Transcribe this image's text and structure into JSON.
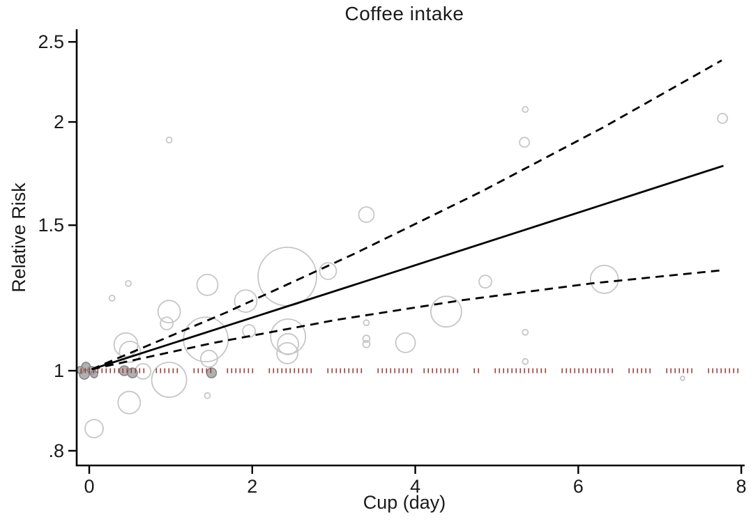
{
  "chart_data": {
    "type": "scatter",
    "subtype": "dose-response-meta-analysis-bubble-plot",
    "title": "Coffee intake",
    "xlabel": "Cup (day)",
    "ylabel": "Relative Risk",
    "x_ticks": [
      {
        "v": 0,
        "label": "0"
      },
      {
        "v": 2,
        "label": "2"
      },
      {
        "v": 4,
        "label": "4"
      },
      {
        "v": 6,
        "label": "6"
      },
      {
        "v": 8,
        "label": "8"
      }
    ],
    "y_ticks": [
      {
        "v": 2.5,
        "label": "2.5"
      },
      {
        "v": 2,
        "label": "2"
      },
      {
        "v": 1.5,
        "label": "1.5"
      },
      {
        "v": 1,
        "label": "1"
      },
      {
        "v": 0.8,
        "label": ".8"
      }
    ],
    "y_scale": "log",
    "xlim": [
      -0.15,
      8.05
    ],
    "ylim": [
      0.78,
      2.55
    ],
    "grid": false,
    "legend": "none",
    "curves": [
      {
        "name": "fitted-relative-risk",
        "style": "solid",
        "points": [
          [
            0.03,
            1.004
          ],
          [
            3.9,
            1.332
          ],
          [
            7.78,
            1.77
          ]
        ]
      },
      {
        "name": "upper-95ci",
        "style": "dashed",
        "points": [
          [
            0.03,
            1.004
          ],
          [
            1.68,
            1.176
          ],
          [
            3.27,
            1.388
          ],
          [
            4.82,
            1.649
          ],
          [
            6.31,
            1.971
          ],
          [
            7.76,
            2.374
          ]
        ]
      },
      {
        "name": "lower-95ci",
        "style": "dashed",
        "points": [
          [
            0.03,
            1.004
          ],
          [
            1.51,
            1.08
          ],
          [
            3.03,
            1.152
          ],
          [
            4.57,
            1.217
          ],
          [
            6.15,
            1.275
          ],
          [
            7.76,
            1.323
          ]
        ]
      }
    ],
    "reference_line": {
      "rr": 1.0,
      "style": "rug-of-short-vertical-dashes",
      "x_start": -0.1,
      "x_end": 7.97,
      "gaps_at": [
        0.74,
        1.19,
        1.6,
        2.09,
        2.82,
        3.44,
        4.04,
        4.62,
        4.89,
        5.71,
        6.52,
        6.99,
        7.48
      ]
    },
    "bubbles": [
      {
        "x": -0.04,
        "rr": 1.012,
        "r": 6,
        "filled": true
      },
      {
        "x": 0.03,
        "rr": 1.0,
        "r": 6,
        "filled": true
      },
      {
        "x": -0.06,
        "rr": 0.99,
        "r": 7,
        "filled": true
      },
      {
        "x": 0.06,
        "rr": 0.99,
        "r": 5,
        "filled": true
      },
      {
        "x": -0.11,
        "rr": 1.002,
        "r": 5,
        "filled": true
      },
      {
        "x": 0.43,
        "rr": 1.0,
        "r": 7,
        "filled": true
      },
      {
        "x": 0.53,
        "rr": 0.994,
        "r": 7,
        "filled": true
      },
      {
        "x": 1.5,
        "rr": 0.994,
        "r": 7,
        "filled": true
      },
      {
        "x": 0.06,
        "rr": 0.851,
        "r": 13,
        "filled": false
      },
      {
        "x": 0.49,
        "rr": 0.915,
        "r": 16,
        "filled": false
      },
      {
        "x": 0.98,
        "rr": 0.975,
        "r": 25,
        "filled": false
      },
      {
        "x": 0.45,
        "rr": 1.075,
        "r": 17,
        "filled": false
      },
      {
        "x": 0.5,
        "rr": 1.054,
        "r": 15,
        "filled": false
      },
      {
        "x": 0.95,
        "rr": 1.141,
        "r": 9,
        "filled": false
      },
      {
        "x": 0.66,
        "rr": 0.998,
        "r": 11,
        "filled": false
      },
      {
        "x": 0.98,
        "rr": 1.179,
        "r": 16,
        "filled": false
      },
      {
        "x": 1.45,
        "rr": 1.27,
        "r": 15,
        "filled": false
      },
      {
        "x": 0.28,
        "rr": 1.224,
        "r": 4,
        "filled": false
      },
      {
        "x": 0.48,
        "rr": 1.275,
        "r": 4,
        "filled": false
      },
      {
        "x": 0.98,
        "rr": 1.902,
        "r": 4,
        "filled": false
      },
      {
        "x": 1.43,
        "rr": 1.091,
        "r": 32,
        "filled": false
      },
      {
        "x": 1.47,
        "rr": 1.034,
        "r": 12,
        "filled": false
      },
      {
        "x": 1.45,
        "rr": 0.933,
        "r": 4,
        "filled": false
      },
      {
        "x": 1.92,
        "rr": 1.214,
        "r": 16,
        "filled": false
      },
      {
        "x": 1.96,
        "rr": 1.117,
        "r": 9,
        "filled": false
      },
      {
        "x": 2.43,
        "rr": 1.3,
        "r": 42,
        "filled": false
      },
      {
        "x": 2.44,
        "rr": 1.1,
        "r": 25,
        "filled": false
      },
      {
        "x": 2.44,
        "rr": 1.077,
        "r": 15,
        "filled": false
      },
      {
        "x": 2.43,
        "rr": 1.05,
        "r": 15,
        "filled": false
      },
      {
        "x": 2.93,
        "rr": 1.32,
        "r": 12,
        "filled": false
      },
      {
        "x": 3.4,
        "rr": 1.545,
        "r": 11,
        "filled": false
      },
      {
        "x": 3.4,
        "rr": 1.143,
        "r": 4,
        "filled": false
      },
      {
        "x": 3.4,
        "rr": 1.093,
        "r": 5,
        "filled": false
      },
      {
        "x": 3.4,
        "rr": 1.077,
        "r": 5,
        "filled": false
      },
      {
        "x": 3.88,
        "rr": 1.081,
        "r": 14,
        "filled": false
      },
      {
        "x": 4.38,
        "rr": 1.179,
        "r": 22,
        "filled": false
      },
      {
        "x": 4.86,
        "rr": 1.282,
        "r": 9,
        "filled": false
      },
      {
        "x": 5.35,
        "rr": 2.071,
        "r": 4,
        "filled": false
      },
      {
        "x": 5.34,
        "rr": 1.89,
        "r": 7,
        "filled": false
      },
      {
        "x": 5.35,
        "rr": 1.113,
        "r": 4,
        "filled": false
      },
      {
        "x": 5.35,
        "rr": 1.026,
        "r": 4,
        "filled": false
      },
      {
        "x": 6.32,
        "rr": 1.29,
        "r": 20,
        "filled": false
      },
      {
        "x": 7.77,
        "rr": 2.02,
        "r": 7,
        "filled": false
      },
      {
        "x": 7.28,
        "rr": 0.979,
        "r": 3,
        "filled": false
      }
    ],
    "colors": {
      "line": "#000000",
      "bubble_stroke": "#c6c6c6",
      "bubble_fill": "#a3a3a3",
      "bubble_fill_stroke": "#848484",
      "reference": "#9b3c38",
      "text": "#1a1a1a"
    }
  }
}
